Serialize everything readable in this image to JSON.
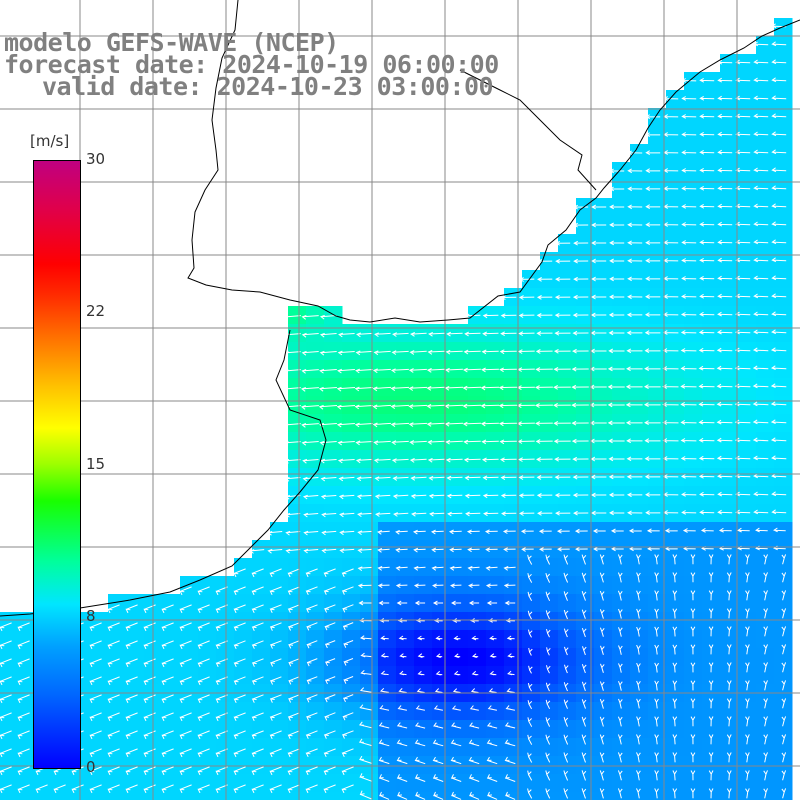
{
  "title": {
    "model": "modelo GEFS-WAVE (NCEP)",
    "forecast": "forecast date: 2024-10-19 06:00:00",
    "valid": "valid date: 2024-10-23 03:00:00"
  },
  "colorbar": {
    "unit": "[m/s]",
    "ticks": [
      "30",
      "22",
      "15",
      "8",
      "0"
    ],
    "min": 0,
    "max": 30,
    "colors": [
      "#0000ff",
      "#0066ff",
      "#00a0ff",
      "#00e6ff",
      "#00ff9c",
      "#19ff00",
      "#9cff00",
      "#ffff00",
      "#ffc000",
      "#ff7a00",
      "#ff2a00",
      "#ff0000",
      "#e0004a",
      "#c00080"
    ]
  },
  "map": {
    "variable": "wind speed and direction",
    "land_color": "#ffffff",
    "coast_color": "#000000",
    "grid_color": "#888888",
    "arrow_color": "#ffffff"
  }
}
